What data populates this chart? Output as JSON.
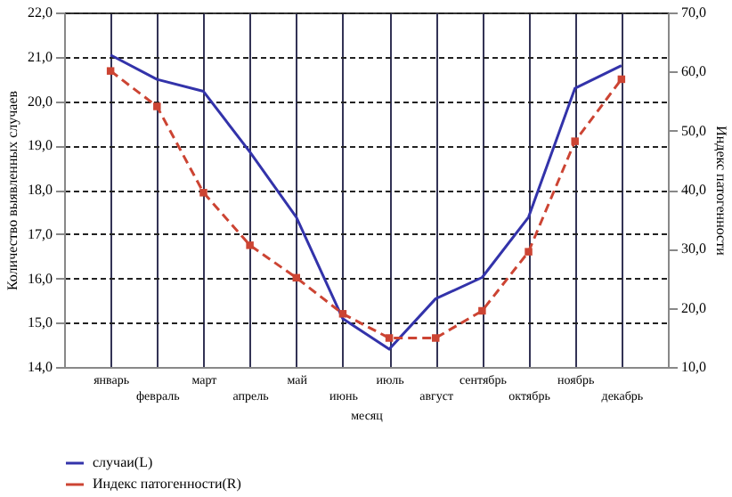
{
  "chart_data": {
    "type": "line",
    "categories": [
      "январь",
      "февраль",
      "март",
      "апрель",
      "май",
      "июнь",
      "июль",
      "август",
      "сентябрь",
      "октябрь",
      "ноябрь",
      "декабрь"
    ],
    "xlabel": "месяц",
    "ylabel": "Количество выявленных случаев",
    "y2label": "Индекс патогенности",
    "series": [
      {
        "name": "случаи(L)",
        "color": "#3333aa",
        "line_style": "solid",
        "marker": "none",
        "values": [
          21.04,
          20.49,
          20.22,
          18.85,
          17.38,
          15.09,
          14.4,
          15.54,
          16.02,
          17.38,
          20.29,
          20.8
        ]
      },
      {
        "name": "Индекс патогенности(R)",
        "color": "#cc4433",
        "line_style": "dashed",
        "marker": "square",
        "axis": "y2",
        "values": [
          60.1,
          54.1,
          39.5,
          30.6,
          25.1,
          19.0,
          14.9,
          14.9,
          19.5,
          29.5,
          48.2,
          58.7
        ]
      }
    ],
    "ylim": [
      14,
      22
    ],
    "yticks": [
      {
        "value": 14,
        "label": "14,0"
      },
      {
        "value": 15,
        "label": "15,0"
      },
      {
        "value": 16,
        "label": "16,0"
      },
      {
        "value": 17,
        "label": "17,0"
      },
      {
        "value": 18,
        "label": "18,0"
      },
      {
        "value": 19,
        "label": "19,0"
      },
      {
        "value": 20,
        "label": "20,0"
      },
      {
        "value": 21,
        "label": "21,0"
      },
      {
        "value": 22,
        "label": "22,0"
      }
    ],
    "y2lim": [
      10,
      70
    ],
    "y2ticks": [
      {
        "value": 10,
        "label": "10,0"
      },
      {
        "value": 20,
        "label": "20,0"
      },
      {
        "value": 30,
        "label": "30,0"
      },
      {
        "value": 40,
        "label": "40,0"
      },
      {
        "value": 50,
        "label": "50,0"
      },
      {
        "value": 60,
        "label": "60,0"
      },
      {
        "value": 70,
        "label": "70,0"
      }
    ],
    "grid": true,
    "legend": "bottom left"
  }
}
